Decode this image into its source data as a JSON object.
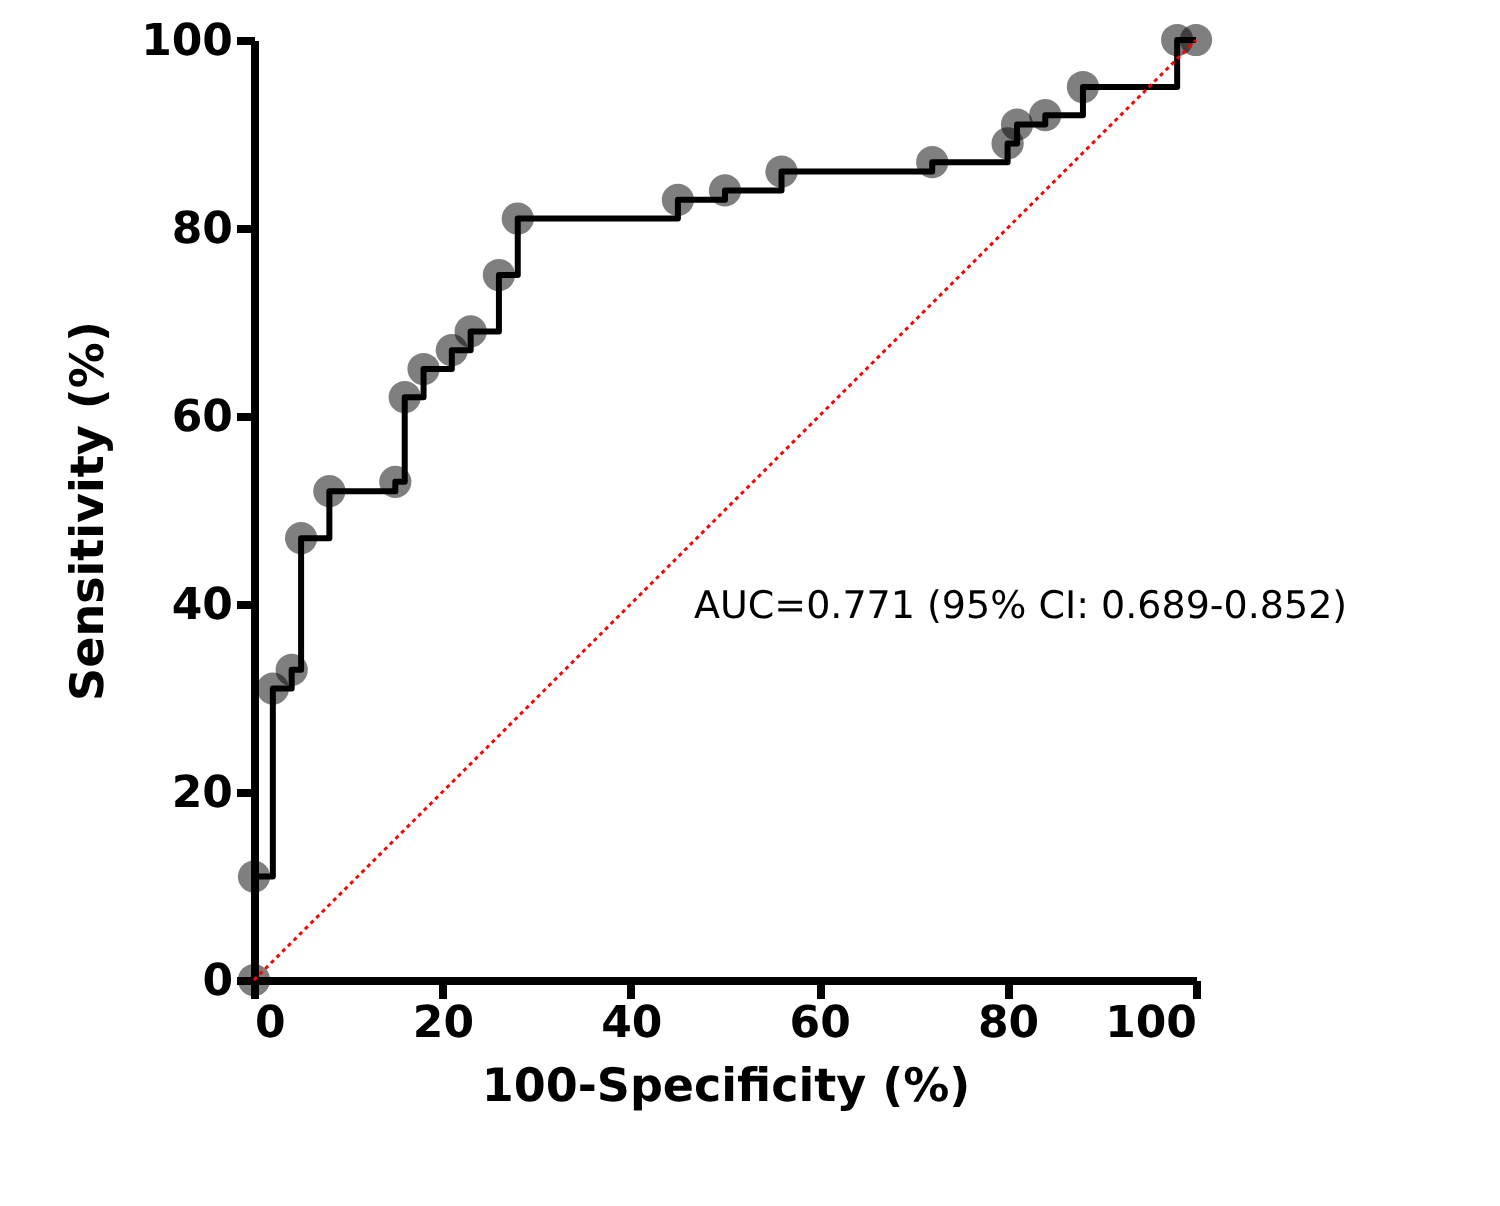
{
  "chart_data": {
    "type": "step",
    "xlabel": "100-Specificity (%)",
    "ylabel": "Sensitivity (%)",
    "xlim": [
      0,
      100
    ],
    "ylim": [
      0,
      100
    ],
    "xticks": [
      0,
      20,
      40,
      60,
      80,
      100
    ],
    "yticks": [
      0,
      20,
      40,
      60,
      80,
      100
    ],
    "annotations": [
      "AUC=0.771 (95% CI: 0.689-0.852)"
    ],
    "series": [
      {
        "color": "#000000",
        "marker": "circle",
        "line_style": "solid",
        "x": [
          0,
          0,
          2,
          4,
          5,
          8,
          15,
          16,
          18,
          21,
          23,
          26,
          28,
          45,
          50,
          56,
          72,
          80,
          81,
          84,
          88,
          98,
          100
        ],
        "values": [
          0,
          11,
          31,
          33,
          47,
          52,
          53,
          62,
          65,
          67,
          69,
          75,
          81,
          83,
          84,
          86,
          87,
          89,
          91,
          92,
          95,
          100,
          100
        ]
      },
      {
        "type": "line",
        "color": "#ff0000",
        "marker": "none",
        "line_style": "dotted",
        "x": [
          0,
          100
        ],
        "values": [
          0,
          100
        ]
      }
    ]
  }
}
